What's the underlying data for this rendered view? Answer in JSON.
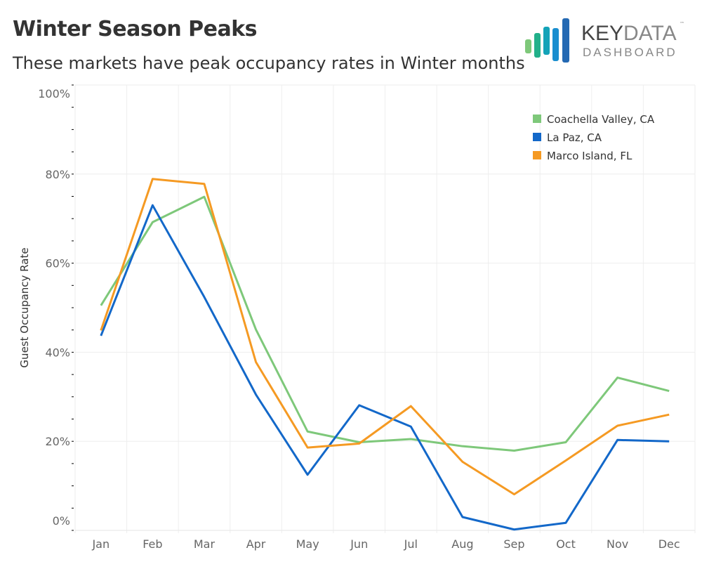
{
  "title": "Winter Season Peaks",
  "subtitle": "These markets have peak occupancy rates in Winter months",
  "logo": {
    "text_main_dark": "KEY",
    "text_main_light": "DATA",
    "tm": "™",
    "text_sub": "DASHBOARD"
  },
  "chart_data": {
    "type": "line",
    "title": "Winter Season Peaks",
    "subtitle": "These markets have peak occupancy rates in Winter months",
    "xlabel": "",
    "ylabel": "Guest Occupancy Rate",
    "ylim": [
      0,
      100
    ],
    "y_ticks": [
      "0%",
      "20%",
      "40%",
      "60%",
      "80%",
      "100%"
    ],
    "grid": true,
    "legend_position": "top-right",
    "categories": [
      "Jan",
      "Feb",
      "Mar",
      "Apr",
      "May",
      "Jun",
      "Jul",
      "Aug",
      "Sep",
      "Oct",
      "Nov",
      "Dec"
    ],
    "series": [
      {
        "name": "Coachella Valley, CA",
        "color": "#7ec87a",
        "values": [
          50.5,
          69.2,
          74.9,
          45.1,
          22.2,
          19.8,
          20.5,
          18.9,
          17.9,
          19.8,
          34.3,
          31.3
        ]
      },
      {
        "name": "La Paz, CA",
        "color": "#1368c9",
        "values": [
          43.7,
          73.0,
          52.4,
          30.5,
          12.5,
          28.1,
          23.3,
          3.0,
          0.2,
          1.7,
          20.3,
          20.0
        ]
      },
      {
        "name": "Marco Island, FL",
        "color": "#f59a23",
        "values": [
          44.9,
          78.9,
          77.8,
          37.8,
          18.6,
          19.5,
          27.9,
          15.4,
          8.1,
          15.7,
          23.5,
          26.0
        ]
      }
    ]
  }
}
